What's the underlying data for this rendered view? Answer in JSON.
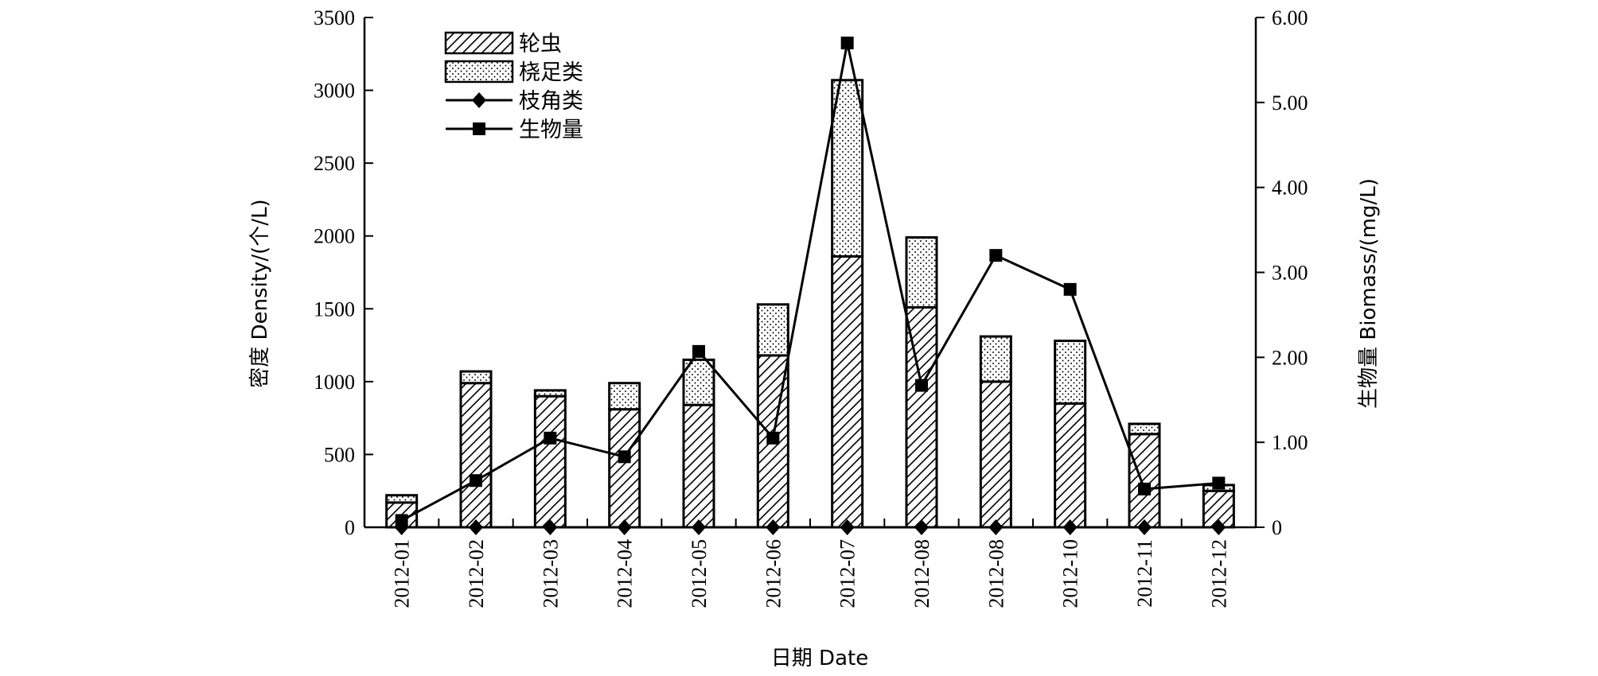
{
  "chart_data": {
    "type": "bar",
    "stacked": true,
    "categories": [
      "2012-01",
      "2012-02",
      "2012-03",
      "2012-04",
      "2012-05",
      "2012-06",
      "2012-07",
      "2012-08",
      "2012-08",
      "2012-10",
      "2012-11",
      "2012-12"
    ],
    "xlabel": "日期 Date",
    "ylabel": "密度 Density/(个/L)",
    "y2label": "生物量 Biomass/(mg/L)",
    "ylim": [
      0,
      3500
    ],
    "yticks": [
      0,
      500,
      1000,
      1500,
      2000,
      2500,
      3000,
      3500
    ],
    "y2lim": [
      0,
      6
    ],
    "y2ticks": [
      "0",
      "1.00",
      "2.00",
      "3.00",
      "4.00",
      "5.00",
      "6.00"
    ],
    "y2tick_values": [
      0,
      1,
      2,
      3,
      4,
      5,
      6
    ],
    "legend_position": "top-left",
    "grid": false,
    "series": [
      {
        "name": "轮虫",
        "kind": "bar",
        "pattern": "hatch",
        "axis": "left",
        "values": [
          170,
          990,
          900,
          810,
          840,
          1180,
          1860,
          1510,
          1000,
          850,
          640,
          250
        ]
      },
      {
        "name": "桡足类",
        "kind": "bar",
        "pattern": "dots",
        "axis": "left",
        "values": [
          50,
          80,
          40,
          180,
          310,
          350,
          1210,
          480,
          310,
          430,
          70,
          40
        ]
      },
      {
        "name": "枝角类",
        "kind": "line",
        "marker": "diamond",
        "axis": "left",
        "values": [
          0,
          0,
          0,
          0,
          0,
          0,
          0,
          0,
          0,
          0,
          0,
          0
        ]
      },
      {
        "name": "生物量",
        "kind": "line",
        "marker": "square",
        "axis": "right",
        "values": [
          0.08,
          0.55,
          1.05,
          0.83,
          2.07,
          1.05,
          5.7,
          1.67,
          3.2,
          2.8,
          0.45,
          0.52
        ]
      }
    ]
  }
}
